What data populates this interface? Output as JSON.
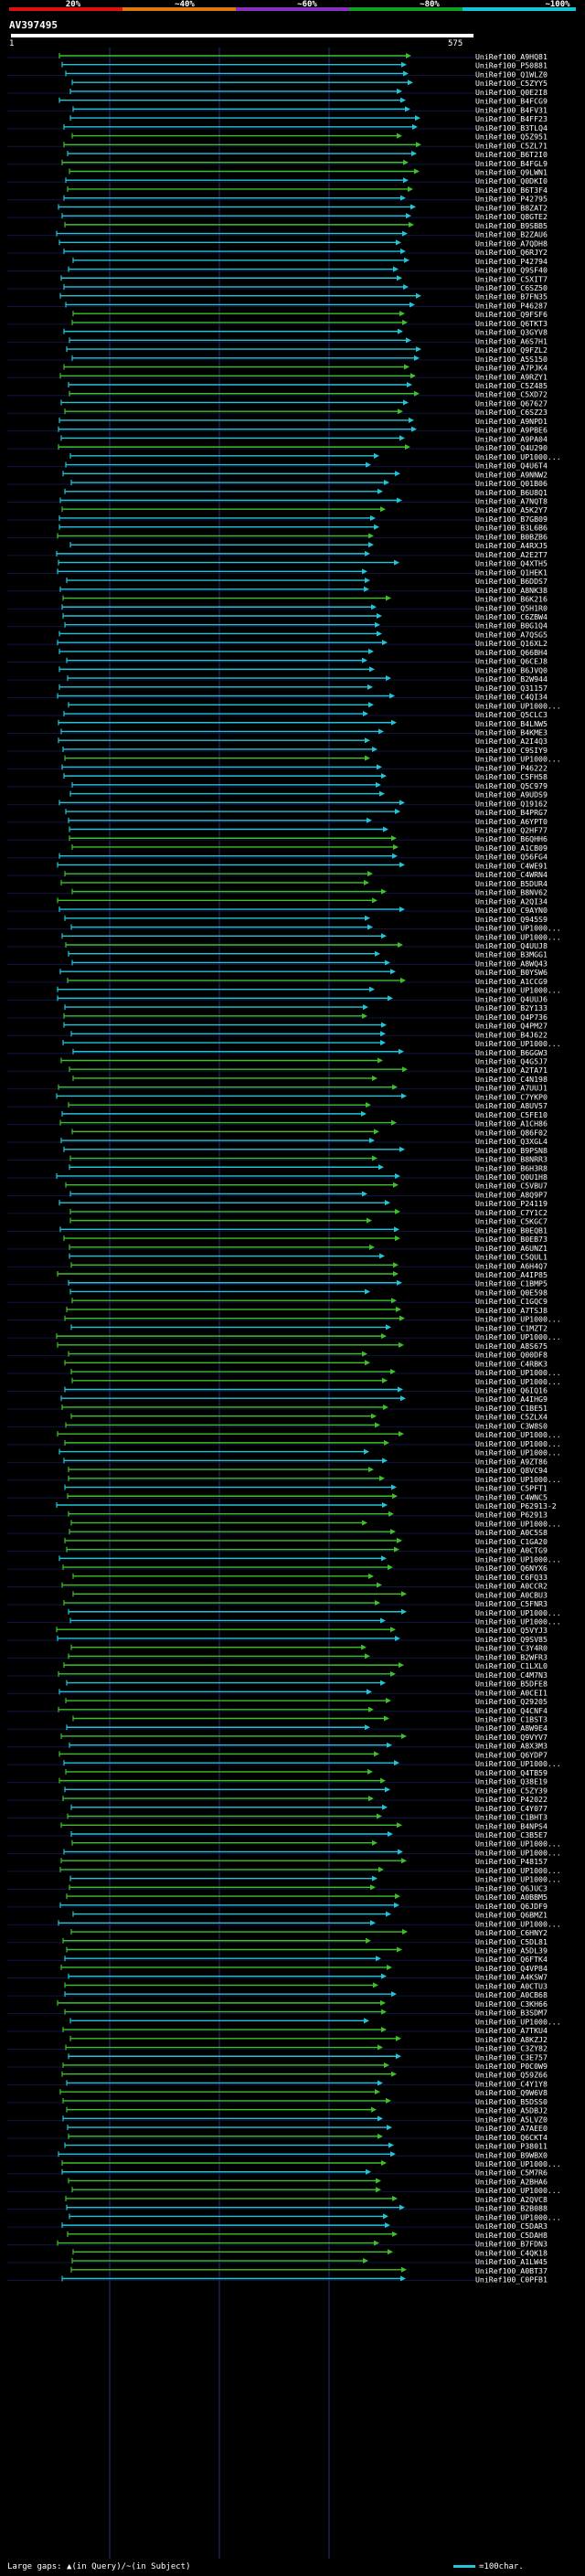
{
  "scale": {
    "labels": [
      "20%",
      "~40%",
      "~60%",
      "~80%",
      "~100%"
    ],
    "colors": [
      "#e01010",
      "#e07810",
      "#8830c0",
      "#10a020",
      "#12c6d8"
    ]
  },
  "query": {
    "name": "AV397495",
    "start": "1",
    "end": "575"
  },
  "colors": {
    "background": "#000000",
    "cyan": "#22c5d8",
    "green": "#3fc02a",
    "grid": "#2a2f80"
  },
  "hits": [
    "UniRef100_A9HQ81",
    "UniRef100_P50881",
    "UniRef100_Q1WLZ0",
    "UniRef100_C5ZYY5",
    "UniRef100_Q0E2I8",
    "UniRef100_B4FCG9",
    "UniRef100_B4FV31",
    "UniRef100_B4FF23",
    "UniRef100_B3TLQ4",
    "UniRef100_Q5Z951",
    "UniRef100_C5ZL71",
    "UniRef100_B6T2I0",
    "UniRef100_B4FGL9",
    "UniRef100_Q9LWN1",
    "UniRef100_Q0DKI0",
    "UniRef100_B6T3F4",
    "UniRef100_P42795",
    "UniRef100_B8ZAT2",
    "UniRef100_Q8GTE2",
    "UniRef100_B9SBB5",
    "UniRef100_B2ZAU6",
    "UniRef100_A7QDH8",
    "UniRef100_Q6RJY2",
    "UniRef100_P42794",
    "UniRef100_Q9SF40",
    "UniRef100_C5XIT7",
    "UniRef100_C6SZ50",
    "UniRef100_B7FN35",
    "UniRef100_P46287",
    "UniRef100_Q9FSF6",
    "UniRef100_Q6TKT3",
    "UniRef100_Q3GYV8",
    "UniRef100_A6S7H1",
    "UniRef100_Q9FZL2",
    "UniRef100_A5S150",
    "UniRef100_A7PJK4",
    "UniRef100_A9RZY1",
    "UniRef100_C5Z485",
    "UniRef100_C5XD72",
    "UniRef100_Q67627",
    "UniRef100_C6SZ23",
    "UniRef100_A9NPD1",
    "UniRef100_A9PBE6",
    "UniRef100_A9PA04",
    "UniRef100_Q4U290",
    "UniRef100_UP1000...",
    "UniRef100_Q4U6T4",
    "UniRef100_A9NNW2",
    "UniRef100_Q01B06",
    "UniRef100_B6U8Q1",
    "UniRef100_A7NQT8",
    "UniRef100_A5K2Y7",
    "UniRef100_B7GB09",
    "UniRef100_B3L6B6",
    "UniRef100_B0BZB6",
    "UniRef100_A4RXJ5",
    "UniRef100_A2E2T7",
    "UniRef100_Q4XTH5",
    "UniRef100_Q1HEK1",
    "UniRef100_B6DDS7",
    "UniRef100_A8NK38",
    "UniRef100_B6K216",
    "UniRef100_Q5H1R0",
    "UniRef100_C6ZBW4",
    "UniRef100_B0G1Q4",
    "UniRef100_A7QSG5",
    "UniRef100_Q16XL2",
    "UniRef100_Q66BH4",
    "UniRef100_Q6CEJ8",
    "UniRef100_B6JVQ0",
    "UniRef100_B2W944",
    "UniRef100_Q31157",
    "UniRef100_C4QI34",
    "UniRef100_UP1000...",
    "UniRef100_Q5CLC3",
    "UniRef100_B4LNW5",
    "UniRef100_B4KME3",
    "UniRef100_A2I4Q3",
    "UniRef100_C9SIY9",
    "UniRef100_UP1000...",
    "UniRef100_P46222",
    "UniRef100_C5FH58",
    "UniRef100_Q5C979",
    "UniRef100_A9UDS9",
    "UniRef100_Q19162",
    "UniRef100_B4PRG7",
    "UniRef100_A6YPT0",
    "UniRef100_Q2HF77",
    "UniRef100_B6QHH6",
    "UniRef100_A1CB09",
    "UniRef100_Q56FG4",
    "UniRef100_C4WE91",
    "UniRef100_C4WRN4",
    "UniRef100_B5DUR4",
    "UniRef100_B8NV62",
    "UniRef100_A2QI34",
    "UniRef100_C9AYN0",
    "UniRef100_Q945S9",
    "UniRef100_UP1000...",
    "UniRef100_UP1000...",
    "UniRef100_Q4UUJ8",
    "UniRef100_B3MGG1",
    "UniRef100_A8WQ43",
    "UniRef100_B0YSW6",
    "UniRef100_A1CCG9",
    "UniRef100_UP1000...",
    "UniRef100_Q4UUJ6",
    "UniRef100_B2Y133",
    "UniRef100_Q4P736",
    "UniRef100_Q4PM27",
    "UniRef100_B4J622",
    "UniRef100_UP1000...",
    "UniRef100_B6GGW3",
    "UniRef100_Q4G5J7",
    "UniRef100_A2TA71",
    "UniRef100_C4N198",
    "UniRef100_A7UUJ1",
    "UniRef100_C7YKP0",
    "UniRef100_A8UV57",
    "UniRef100_C5FE10",
    "UniRef100_A1CH86",
    "UniRef100_Q86F02",
    "UniRef100_Q3XGL4",
    "UniRef100_B9PSN8",
    "UniRef100_B8NRR3",
    "UniRef100_B6H3R8",
    "UniRef100_Q0U1H8",
    "UniRef100_C5VBU7",
    "UniRef100_A8Q9P7",
    "UniRef100_P24119",
    "UniRef100_C7Y1C2",
    "UniRef100_C5KGC7",
    "UniRef100_B0EQB1",
    "UniRef100_B0EB73",
    "UniRef100_A6UNZ1",
    "UniRef100_C5QUL1",
    "UniRef100_A6H4Q7",
    "UniRef100_A4IP85",
    "UniRef100_C1BMP5",
    "UniRef100_Q0E598",
    "UniRef100_C1GQC9",
    "UniRef100_A7TSJ8",
    "UniRef100_UP1000...",
    "UniRef100_C1MZT2",
    "UniRef100_UP1000...",
    "UniRef100_A8S675",
    "UniRef100_Q00DF8",
    "UniRef100_C4RBK3",
    "UniRef100_UP1000...",
    "UniRef100_UP1000...",
    "UniRef100_Q6IQ16",
    "UniRef100_A4IHG9",
    "UniRef100_C1BE51",
    "UniRef100_C5ZLX4",
    "UniRef100_C3W8S0",
    "UniRef100_UP1000...",
    "UniRef100_UP1000...",
    "UniRef100_UP1000...",
    "UniRef100_A9ZT86",
    "UniRef100_Q8VC94",
    "UniRef100_UP1000...",
    "UniRef100_C5PFT1",
    "UniRef100_C4WNC5",
    "UniRef100_P62913-2",
    "UniRef100_P62913",
    "UniRef100_UP1000...",
    "UniRef100_A0C5S8",
    "UniRef100_C1GA20",
    "UniRef100_A0CTG9",
    "UniRef100_UP1000...",
    "UniRef100_Q6NYX6",
    "UniRef100_C6FQ33",
    "UniRef100_A0CCR2",
    "UniRef100_A0CBU3",
    "UniRef100_C5FNR3",
    "UniRef100_UP1000...",
    "UniRef100_UP1000...",
    "UniRef100_Q5VYJ3",
    "UniRef100_Q9SV85",
    "UniRef100_C3Y4R0",
    "UniRef100_B2WFR3",
    "UniRef100_C1LXL0",
    "UniRef100_C4M7N3",
    "UniRef100_B5DFE8",
    "UniRef100_A0CEI1",
    "UniRef100_Q29205",
    "UniRef100_Q4CNF4",
    "UniRef100_C1BST3",
    "UniRef100_A8W9E4",
    "UniRef100_Q9VYV7",
    "UniRef100_A8X3M3",
    "UniRef100_Q6YDP7",
    "UniRef100_UP1000...",
    "UniRef100_Q4TB59",
    "UniRef100_Q38E19",
    "UniRef100_C5ZY39",
    "UniRef100_P42022",
    "UniRef100_C4Y077",
    "UniRef100_C1BHT3",
    "UniRef100_B4NPS4",
    "UniRef100_C3B5E7",
    "UniRef100_UP1000...",
    "UniRef100_UP1000...",
    "UniRef100_P48157",
    "UniRef100_UP1000...",
    "UniRef100_UP1000...",
    "UniRef100_Q6JUC3",
    "UniRef100_A0BBM5",
    "UniRef100_Q6JDF9",
    "UniRef100_Q6BMZ1",
    "UniRef100_UP1000...",
    "UniRef100_C6HNY2",
    "UniRef100_C5DL81",
    "UniRef100_A5DL39",
    "UniRef100_Q6FTK4",
    "UniRef100_Q4VP84",
    "UniRef100_A4KSW7",
    "UniRef100_A0CTU3",
    "UniRef100_A0CB68",
    "UniRef100_C3KH66",
    "UniRef100_B3SDM7",
    "UniRef100_UP1000...",
    "UniRef100_A7TKU4",
    "UniRef100_A8KZJ2",
    "UniRef100_C3ZY82",
    "UniRef100_C3E757",
    "UniRef100_P0C0W9",
    "UniRef100_Q59Z66",
    "UniRef100_C4Y1Y8",
    "UniRef100_Q9W6V8",
    "UniRef100_B5DSS0",
    "UniRef100_A5DBJ2",
    "UniRef100_A5LVZ0",
    "UniRef100_A7AEE0",
    "UniRef100_Q6CKT4",
    "UniRef100_P38011",
    "UniRef100_B9WBX0",
    "UniRef100_UP1000...",
    "UniRef100_C5M7R6",
    "UniRef100_A2BHA6",
    "UniRef100_UP1000...",
    "UniRef100_A2QVC8",
    "UniRef100_B2B088",
    "UniRef100_UP1000...",
    "UniRef100_C5DAR3",
    "UniRef100_C5DAH8",
    "UniRef100_B7FDN3",
    "UniRef100_C4QK18",
    "UniRef100_A1LW45",
    "UniRef100_A0BT37",
    "UniRef100_C0PFB1"
  ],
  "legend": {
    "gaps_text": "Large gaps: ",
    "query_gap_text": "(in Query)",
    "subject_gap_text": "(in Subject)",
    "scale_text": "=100char."
  }
}
